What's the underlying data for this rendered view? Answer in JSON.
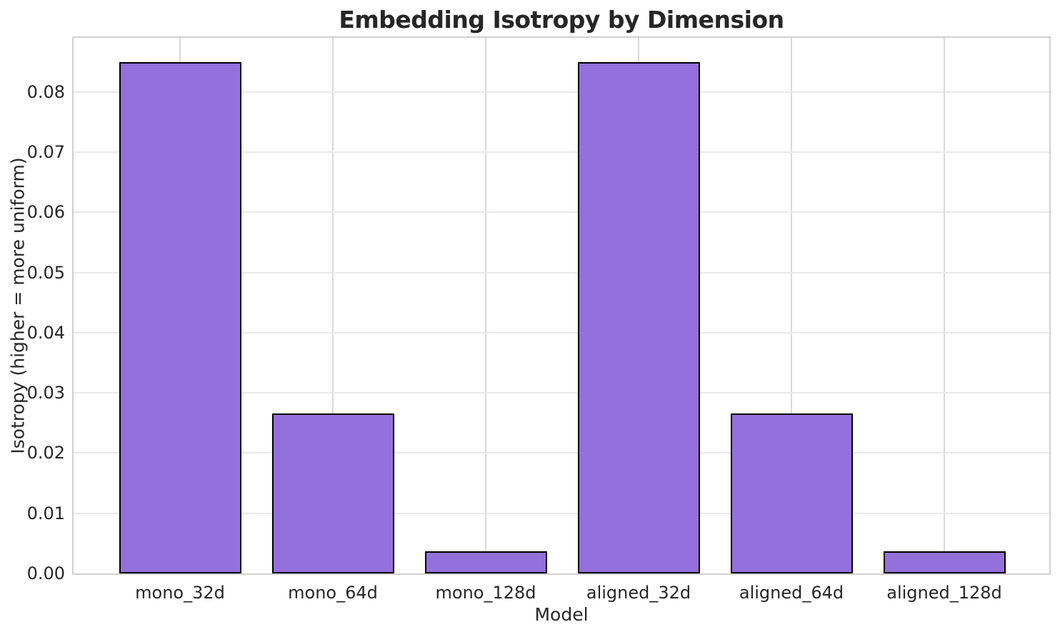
{
  "chart_data": {
    "type": "bar",
    "title": "Embedding Isotropy by Dimension",
    "xlabel": "Model",
    "ylabel": "Isotropy (higher = more uniform)",
    "categories": [
      "mono_32d",
      "mono_64d",
      "mono_128d",
      "aligned_32d",
      "aligned_64d",
      "aligned_128d"
    ],
    "values": [
      0.085,
      0.0266,
      0.0037,
      0.085,
      0.0266,
      0.0037
    ],
    "ylim": [
      0,
      0.089
    ],
    "ytick_values": [
      0.0,
      0.01,
      0.02,
      0.03,
      0.04,
      0.05,
      0.06,
      0.07,
      0.08
    ],
    "yticklabels": [
      "0.00",
      "0.01",
      "0.02",
      "0.03",
      "0.04",
      "0.05",
      "0.06",
      "0.07",
      "0.08"
    ],
    "grid": "both",
    "legend": "none",
    "bar_color": "#9370DB",
    "bar_edge_color": "#000000",
    "background_color": "#ffffff",
    "grid_color_horizontal": "#e9e9e9",
    "grid_color_vertical": "#d9d9d9",
    "frame_color": "#cfcfcf",
    "text_color": "#262626"
  }
}
